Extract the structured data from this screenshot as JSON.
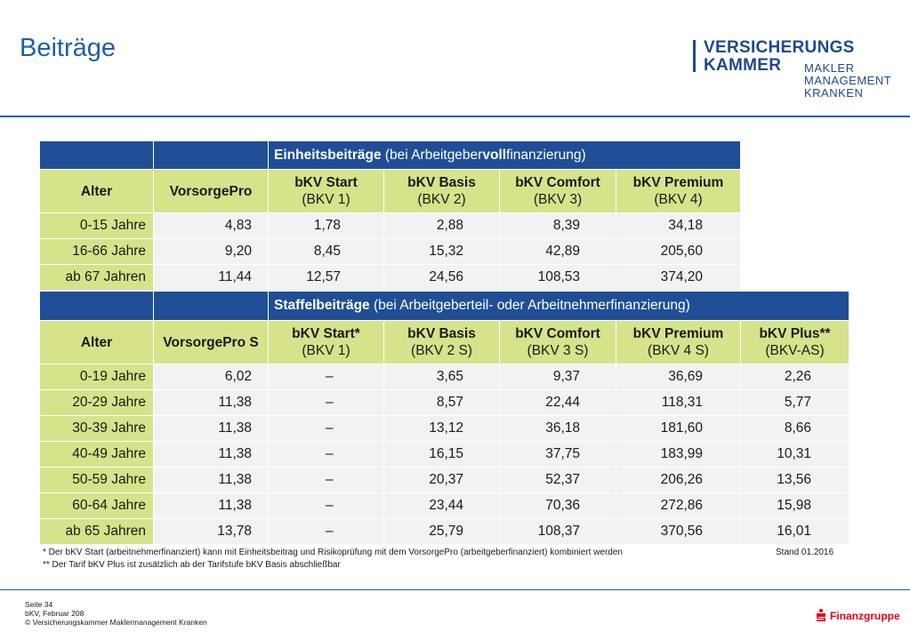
{
  "title": "Beiträge",
  "logo": {
    "line1": "VERSICHERUNGS",
    "line2": "KAMMER",
    "sub1": "MAKLER",
    "sub2": "MANAGEMENT",
    "sub3": "KRANKEN"
  },
  "table1": {
    "header_bold": "Einheitsbeiträge",
    "header_pre": " (bei Arbeitgeber",
    "header_bold2": "voll",
    "header_post": "finanzierung)",
    "cols": [
      {
        "l1": "Alter",
        "l2": ""
      },
      {
        "l1": "VorsorgePro",
        "l2": ""
      },
      {
        "l1": "bKV Start",
        "l2": "(BKV 1)"
      },
      {
        "l1": "bKV Basis",
        "l2": "(BKV 2)"
      },
      {
        "l1": "bKV Comfort",
        "l2": "(BKV 3)"
      },
      {
        "l1": "bKV Premium",
        "l2": "(BKV 4)"
      }
    ],
    "rows": [
      [
        "0-15 Jahre",
        "4,83",
        "1,78",
        "2,88",
        "8,39",
        "34,18"
      ],
      [
        "16-66 Jahre",
        "9,20",
        "8,45",
        "15,32",
        "42,89",
        "205,60"
      ],
      [
        "ab 67 Jahren",
        "11,44",
        "12,57",
        "24,56",
        "108,53",
        "374,20"
      ]
    ]
  },
  "table2": {
    "header_bold": "Staffelbeiträge",
    "header_rest": " (bei Arbeitgeberteil- oder Arbeitnehmerfinanzierung)",
    "cols": [
      {
        "l1": "Alter",
        "l2": ""
      },
      {
        "l1": "VorsorgePro S",
        "l2": ""
      },
      {
        "l1": "bKV Start*",
        "l2": "(BKV 1)"
      },
      {
        "l1": "bKV Basis",
        "l2": "(BKV 2 S)"
      },
      {
        "l1": "bKV Comfort",
        "l2": "(BKV 3 S)"
      },
      {
        "l1": "bKV Premium",
        "l2": "(BKV 4 S)"
      },
      {
        "l1": "bKV Plus**",
        "l2": "(BKV-AS)"
      }
    ],
    "rows": [
      [
        "0-19 Jahre",
        "6,02",
        "–",
        "3,65",
        "9,37",
        "36,69",
        "2,26"
      ],
      [
        "20-29 Jahre",
        "11,38",
        "–",
        "8,57",
        "22,44",
        "118,31",
        "5,77"
      ],
      [
        "30-39 Jahre",
        "11,38",
        "–",
        "13,12",
        "36,18",
        "181,60",
        "8,66"
      ],
      [
        "40-49 Jahre",
        "11,38",
        "–",
        "16,15",
        "37,75",
        "183,99",
        "10,31"
      ],
      [
        "50-59 Jahre",
        "11,38",
        "–",
        "20,37",
        "52,37",
        "206,26",
        "13,56"
      ],
      [
        "60-64 Jahre",
        "11,38",
        "–",
        "23,44",
        "70,36",
        "272,86",
        "15,98"
      ],
      [
        "ab 65 Jahren",
        "13,78",
        "–",
        "25,79",
        "108,37",
        "370,56",
        "16,01"
      ]
    ]
  },
  "footnotes": {
    "note1": "*   Der bKV Start (arbeitnehmerfinanziert) kann mit Einheitsbeitrag und Risikoprüfung mit dem VorsorgePro (arbeitgeberfinanziert) kombiniert werden",
    "stand": "Stand 01.2016",
    "note2": "** Der Tarif bKV Plus ist zusätzlich ab der Tarifstufe bKV Basis abschließbar"
  },
  "footer": {
    "page": "Seite 34",
    "doc": "bKV, Februar 208",
    "copyright": "© Versicherungskammer Maklermanagement Kranken",
    "brand": "Finanzgruppe"
  },
  "colors": {
    "header_blue": "#1f4e96",
    "label_green": "#d6e38a",
    "value_grey": "#f2f2f2",
    "title_blue": "#1f5fa8",
    "brand_red": "#e2001a"
  }
}
